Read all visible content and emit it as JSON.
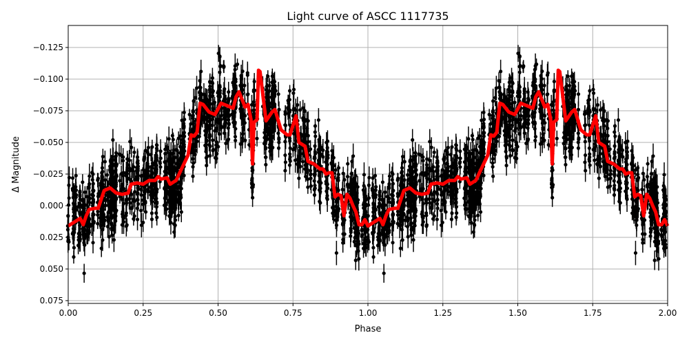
{
  "chart_data": {
    "type": "scatter",
    "title": "Light curve of ASCC 1117735",
    "xlabel": "Phase",
    "ylabel": "Δ Magnitude",
    "xlim": [
      0,
      2
    ],
    "ylim": [
      0.0772,
      -0.1424
    ],
    "y_inverted": true,
    "grid": true,
    "xticks": [
      "0.00",
      "0.25",
      "0.50",
      "0.75",
      "1.00",
      "1.25",
      "1.50",
      "1.75",
      "2.00"
    ],
    "xtick_values": [
      0,
      0.25,
      0.5,
      0.75,
      1,
      1.25,
      1.5,
      1.75,
      2
    ],
    "yticks": [
      "−0.125",
      "−0.100",
      "−0.075",
      "−0.050",
      "−0.025",
      "0.000",
      "0.025",
      "0.050",
      "0.075"
    ],
    "ytick_values": [
      -0.125,
      -0.1,
      -0.075,
      -0.05,
      -0.025,
      0,
      0.025,
      0.05,
      0.075
    ],
    "colors": {
      "points": "#000000",
      "binned": "#ff0000",
      "grid": "#b0b0b0"
    },
    "series": [
      {
        "kind": "scatter-errorbar",
        "color": "#000000"
      },
      {
        "kind": "line",
        "color": "#ff0000",
        "repeats_each_phase": true,
        "x": [
          0,
          0.02,
          0.04,
          0.05,
          0.06,
          0.07,
          0.09,
          0.1,
          0.12,
          0.14,
          0.16,
          0.18,
          0.2,
          0.21,
          0.23,
          0.25,
          0.27,
          0.29,
          0.3,
          0.31,
          0.33,
          0.34,
          0.36,
          0.38,
          0.4,
          0.41,
          0.42,
          0.43,
          0.44,
          0.45,
          0.47,
          0.49,
          0.51,
          0.53,
          0.55,
          0.56,
          0.57,
          0.59,
          0.6,
          0.61,
          0.615,
          0.62,
          0.63,
          0.635,
          0.64,
          0.66,
          0.68,
          0.69,
          0.71,
          0.73,
          0.74,
          0.76,
          0.77,
          0.79,
          0.8,
          0.82,
          0.84,
          0.85,
          0.86,
          0.87,
          0.88,
          0.89,
          0.9,
          0.91,
          0.92,
          0.93,
          0.94,
          0.95,
          0.96,
          0.97,
          0.98,
          0.99,
          1.0
        ],
        "y": [
          0.016,
          0.013,
          0.01,
          0.015,
          0.008,
          0.003,
          0.002,
          0.002,
          -0.012,
          -0.014,
          -0.01,
          -0.009,
          -0.01,
          -0.017,
          -0.018,
          -0.017,
          -0.02,
          -0.02,
          -0.023,
          -0.021,
          -0.022,
          -0.017,
          -0.02,
          -0.03,
          -0.04,
          -0.056,
          -0.055,
          -0.058,
          -0.081,
          -0.08,
          -0.074,
          -0.072,
          -0.081,
          -0.079,
          -0.077,
          -0.086,
          -0.09,
          -0.078,
          -0.08,
          -0.068,
          -0.033,
          -0.066,
          -0.068,
          -0.107,
          -0.106,
          -0.067,
          -0.074,
          -0.076,
          -0.06,
          -0.056,
          -0.056,
          -0.071,
          -0.05,
          -0.047,
          -0.035,
          -0.033,
          -0.029,
          -0.029,
          -0.025,
          -0.026,
          -0.026,
          -0.007,
          -0.009,
          -0.008,
          0.008,
          -0.009,
          -0.006,
          0.0,
          0.005,
          0.015,
          0.015,
          0.011,
          0.016
        ]
      }
    ]
  }
}
